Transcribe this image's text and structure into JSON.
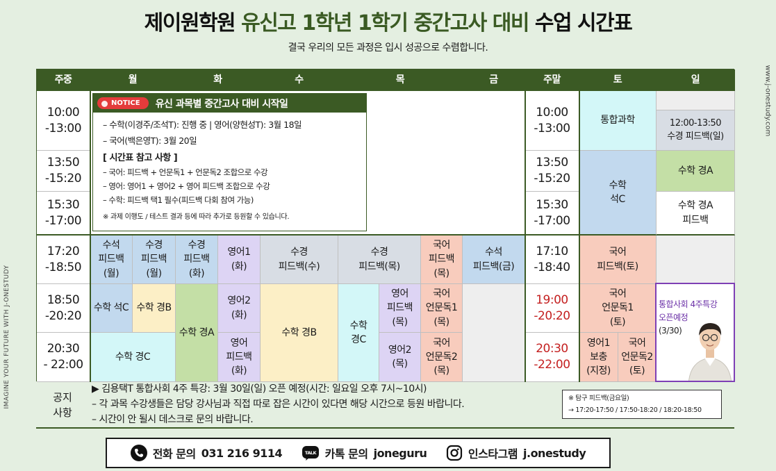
{
  "title": {
    "part1": "제이원학원",
    "part2": "유신고 1학년 1학기 중간고사 대비",
    "part3": "수업 시간표"
  },
  "subtitle": "결국 우리의 모든 과정은 입시 성공으로 수렴합니다.",
  "side_left": "IMAGINE YOUR FUTURE WITH J-ONESTUDY",
  "side_right": "www.j-onestudy.com",
  "header": {
    "weekday_col": "주중",
    "mon": "월",
    "tue": "화",
    "wed": "수",
    "thu": "목",
    "fri": "금",
    "weekend_col": "주말",
    "sat": "토",
    "sun": "일"
  },
  "times_weekday": [
    "10:00\n-13:00",
    "13:50\n-15:20",
    "15:30\n-17:00",
    "17:20\n-18:50",
    "18:50\n-20:20",
    "20:30\n- 22:00"
  ],
  "times_weekend": [
    "10:00\n-13:00",
    "13:50\n-15:20",
    "15:30\n-17:00",
    "17:10\n-18:40",
    "19:00\n-20:20",
    "20:30\n-22:00"
  ],
  "notice": {
    "badge": "NOTICE",
    "title": "유신 과목별 중간고사 대비 시작일",
    "lines": [
      "– 수학(이경주/조석T): 진행 중 | 영어(양현성T): 3월 18일",
      "– 국어(백은영T): 3월 20일"
    ],
    "ref_title": "[ 시간표 참고 사항 ]",
    "ref_lines": [
      "– 국어: 피드백 + 언문독1 + 언문독2 조합으로 수강",
      "– 영어: 영어1 + 영어2 + 영어 피드백 조합으로 수강",
      "– 수학: 피드백 택1 필수(피드백 다회 참여 가능)"
    ],
    "footnote": "※ 과제 이행도 / 테스트 결과 등에 따라 추가로 등원할 수 있습니다."
  },
  "cells": {
    "mon_a_1720": "수석\n피드백\n(월)",
    "mon_b_1720": "수경\n피드백\n(월)",
    "tue_a_1720": "수경\n피드백\n(화)",
    "tue_b_1720": "영어1\n(화)",
    "wed_1720": "수경\n피드백(수)",
    "thu_a_1720": "수경\n피드백(목)",
    "thu_b_1720": "국어\n피드백\n(목)",
    "fri_1720": "수석\n피드백(금)",
    "mon_a_1850": "수학 석C",
    "mon_b_1850": "수학 경B",
    "tue_a_1850": "수학 경A",
    "tue_b_1850": "영어2\n(화)",
    "wed_1850": "수학 경B",
    "thu_a_1850": "수학\n경C",
    "thu_b_1850": "영어\n피드백\n(목)",
    "thu_c_1850": "국어\n언문독1\n(목)",
    "mon_2030": "수학 경C",
    "tue_b_2030": "영어\n피드백\n(화)",
    "thu_b_2030": "영어2\n(목)",
    "thu_c_2030": "국어\n언문독2\n(목)",
    "sat_1000": "통합과학",
    "sun_1000": "12:00-13:50\n수경 피드백(일)",
    "sat_1350": "수학\n석C",
    "sun_1350": "수학 경A",
    "sun_1530": "수학 경A\n피드백",
    "sat_1710": "국어\n피드백(토)",
    "sat_1900": "국어\n언문독1\n(토)",
    "sat_a_2030": "영어1\n보충\n(지정)",
    "sat_b_2030": "국어\n언문독2\n(토)"
  },
  "special": {
    "line1": "통합사회 4주특강",
    "line2": "오픈예정",
    "date": "(3/30)"
  },
  "bottom": {
    "label": "공지\n사항",
    "lines": [
      "▶ 김용택T 통합사회 4주 특강: 3월 30일(일) 오픈 예정(시간: 일요일 오후 7시~10시)",
      "– 각 과목 수강생들은 담당 강사님과 직접 따로 잡은 시간이 있다면 해당 시간으로 등원 바랍니다.",
      "– 시간이 안 될시 데스크로 문의 바랍니다."
    ],
    "box_line1": "※ 탐구 피드백(금요일)",
    "box_line2": "→ 17:20-17:50 / 17:50-18:20 / 18:20-18:50"
  },
  "contact": {
    "phone_label": "전화 문의",
    "phone": "031 216 9114",
    "kakao_label": "카톡 문의",
    "kakao": "joneguru",
    "insta_label": "인스타그램",
    "insta": "j.onestudy",
    "talk_badge": "TALK"
  },
  "colors": {
    "dark_green": "#3b5a24",
    "purple_border": "#7e3fb5",
    "red_time": "#c42020"
  }
}
